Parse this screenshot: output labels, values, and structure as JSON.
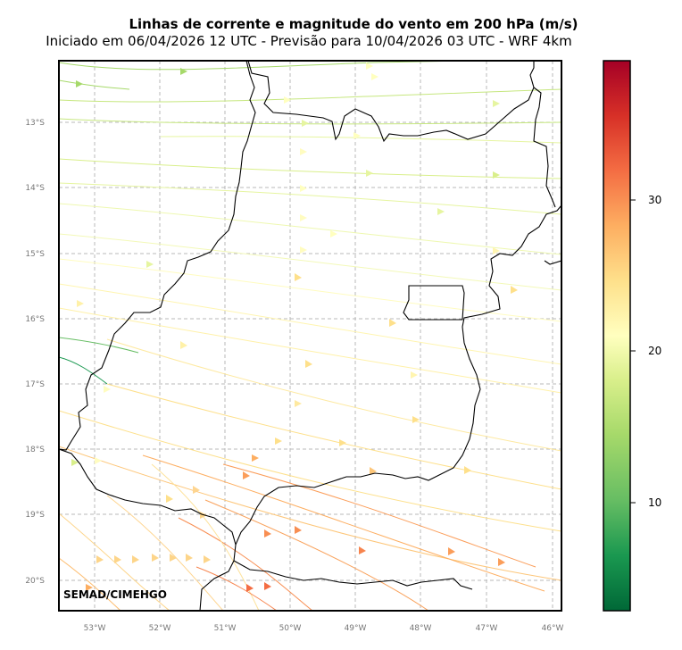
{
  "title": "Linhas de corrente e magnitude do vento em 200 hPa (m/s)",
  "subtitle": "Iniciado em 06/04/2026 12 UTC - Previsão para 10/04/2026 03 UTC - WRF 4km",
  "credit": "SEMAD/CIMEHGO",
  "lat_ticks": [
    "13°S",
    "14°S",
    "15°S",
    "16°S",
    "17°S",
    "18°S",
    "19°S",
    "20°S"
  ],
  "lon_ticks": [
    "53°W",
    "52°W",
    "51°W",
    "50°W",
    "49°W",
    "48°W",
    "47°W",
    "46°W"
  ],
  "colorbar": {
    "ticks": [
      "10",
      "20",
      "30"
    ],
    "colors": [
      "#006837",
      "#1a9850",
      "#66bd63",
      "#a6d96a",
      "#d9ef8b",
      "#ffffbf",
      "#fee08b",
      "#fdae61",
      "#f46d43",
      "#d73027",
      "#a50026"
    ]
  }
}
